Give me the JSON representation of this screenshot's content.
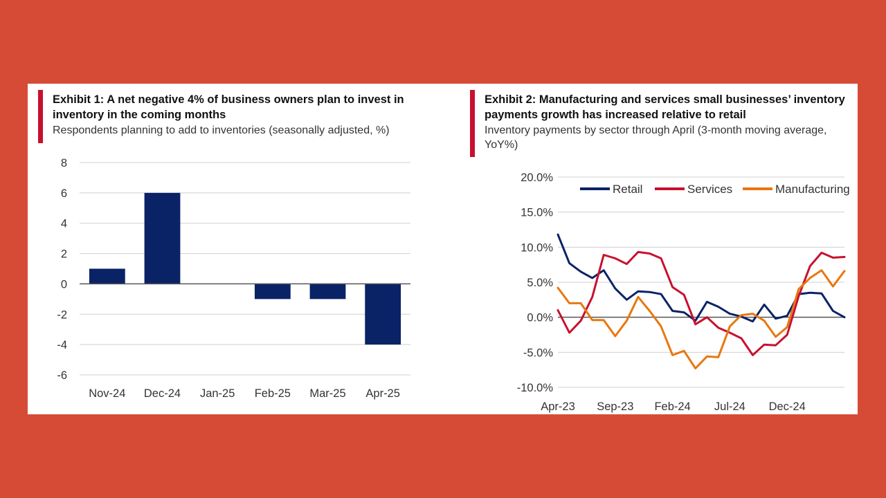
{
  "exhibit1": {
    "title": "Exhibit 1: A net negative 4% of business owners plan to invest in inventory in the coming months",
    "subtitle": "Respondents planning to add to inventories (seasonally adjusted, %)"
  },
  "exhibit2": {
    "title": "Exhibit 2: Manufacturing and services small businesses’ inventory payments growth has increased relative to retail",
    "subtitle": "Inventory payments by sector through April (3-month moving average, YoY%)"
  },
  "chart_data": [
    {
      "type": "bar",
      "title": "Exhibit 1: A net negative 4% of business owners plan to invest in inventory in the coming months",
      "subtitle": "Respondents planning to add to inventories (seasonally adjusted, %)",
      "categories": [
        "Nov-24",
        "Dec-24",
        "Jan-25",
        "Feb-25",
        "Mar-25",
        "Apr-25"
      ],
      "values": [
        1,
        6,
        0,
        -1,
        -1,
        -4
      ],
      "ylim": [
        -6,
        8
      ],
      "yticks": [
        8,
        6,
        4,
        2,
        0,
        -2,
        -4,
        -6
      ],
      "grid": true,
      "color": "#0a2266"
    },
    {
      "type": "line",
      "title": "Exhibit 2: Manufacturing and services small businesses’ inventory payments growth has increased relative to retail",
      "subtitle": "Inventory payments by sector through April (3-month moving average, YoY%)",
      "xticks": [
        "Apr-23",
        "Sep-23",
        "Feb-24",
        "Jul-24",
        "Dec-24"
      ],
      "xtick_index": [
        0,
        5,
        10,
        15,
        20
      ],
      "ylim": [
        -10,
        20
      ],
      "yticks": [
        "20.0%",
        "15.0%",
        "10.0%",
        "5.0%",
        "0.0%",
        "-5.0%",
        "-10.0%"
      ],
      "ytick_values": [
        20,
        15,
        10,
        5,
        0,
        -5,
        -10
      ],
      "legend_position": "top",
      "grid": true,
      "series": [
        {
          "name": "Retail",
          "color": "#0a2266",
          "values": [
            11.8,
            7.7,
            6.5,
            5.6,
            6.7,
            4.1,
            2.5,
            3.7,
            3.6,
            3.3,
            0.9,
            0.7,
            -0.5,
            2.2,
            1.5,
            0.5,
            0.1,
            -0.6,
            1.8,
            -0.2,
            0.2,
            3.3,
            3.5,
            3.4,
            0.9,
            0.0
          ]
        },
        {
          "name": "Services",
          "color": "#c8102e",
          "values": [
            1.0,
            -2.2,
            -0.5,
            2.9,
            8.9,
            8.4,
            7.6,
            9.3,
            9.1,
            8.4,
            4.3,
            3.2,
            -1.0,
            0.0,
            -1.5,
            -2.2,
            -3.0,
            -5.4,
            -3.9,
            -4.0,
            -2.5,
            3.0,
            7.3,
            9.2,
            8.5,
            8.6
          ]
        },
        {
          "name": "Manufacturing",
          "color": "#e87710",
          "values": [
            4.2,
            2.0,
            2.0,
            -0.4,
            -0.4,
            -2.7,
            -0.5,
            2.9,
            0.9,
            -1.3,
            -5.4,
            -4.8,
            -7.3,
            -5.6,
            -5.7,
            -1.3,
            0.3,
            0.5,
            -0.5,
            -2.8,
            -1.4,
            4.0,
            5.6,
            6.7,
            4.4,
            6.6
          ]
        }
      ]
    }
  ]
}
